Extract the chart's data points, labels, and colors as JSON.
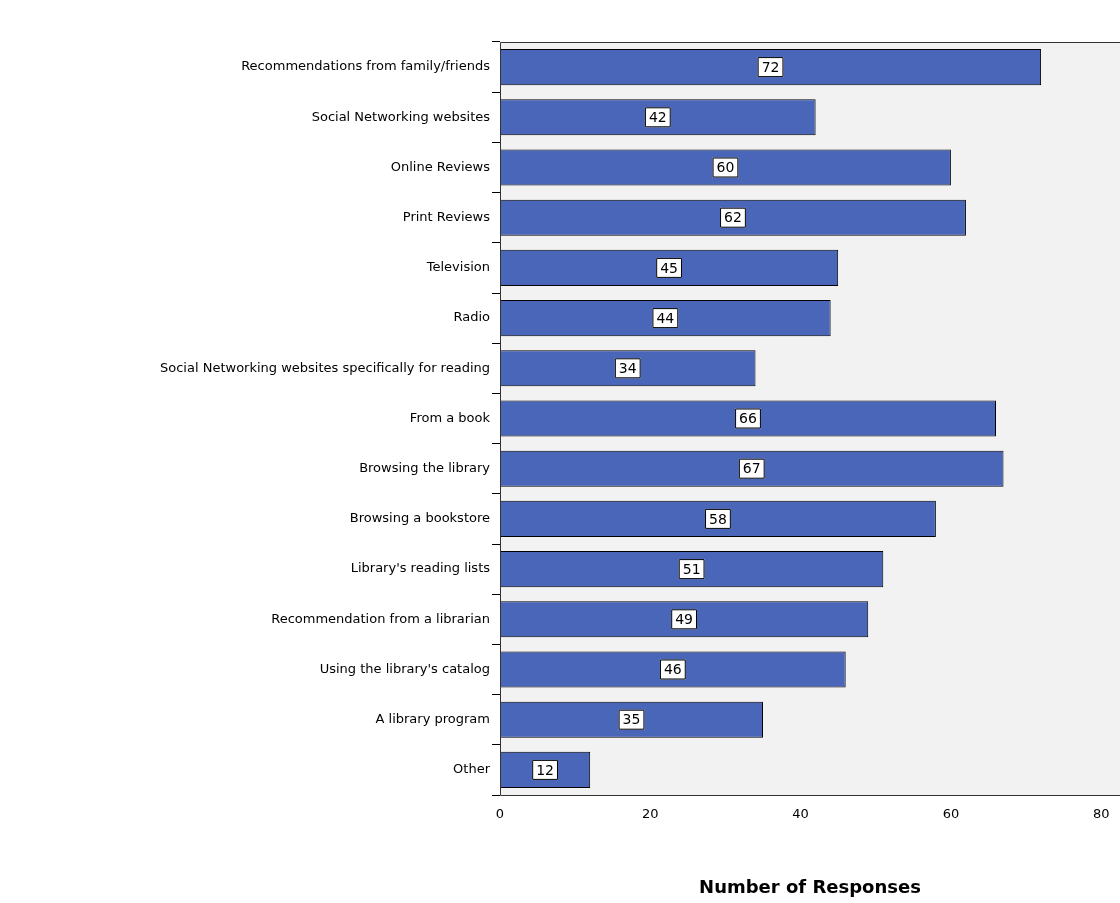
{
  "chart_data": {
    "type": "bar",
    "orientation": "horizontal",
    "xlabel": "Number of Responses",
    "categories": [
      "Recommendations from family/friends",
      "Social Networking websites",
      "Online Reviews",
      "Print Reviews",
      "Television",
      "Radio",
      "Social Networking websites specifically for reading",
      "From a book",
      "Browsing the library",
      "Browsing a bookstore",
      "Library's reading lists",
      "Recommendation from a librarian",
      "Using the library's catalog",
      "A library program",
      "Other"
    ],
    "values": [
      72,
      42,
      60,
      62,
      45,
      44,
      34,
      66,
      67,
      58,
      51,
      49,
      46,
      35,
      12
    ],
    "color": "#4a66b8",
    "xlim": [
      0,
      82.5
    ],
    "xticks": [
      0,
      20,
      40,
      60,
      80
    ],
    "data_labels": true,
    "grid": false
  }
}
